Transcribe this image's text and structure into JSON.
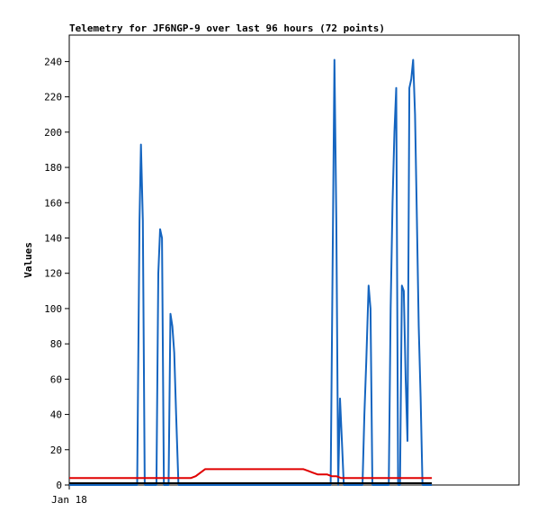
{
  "chart_data": {
    "type": "line",
    "title": "Telemetry for JF6NGP-9 over last 96 hours (72 points)",
    "xlabel": "",
    "ylabel": "Values",
    "x_tick_labels": [
      "Jan 18"
    ],
    "ylim": [
      0,
      255
    ],
    "y_ticks": [
      0,
      20,
      40,
      60,
      80,
      100,
      120,
      140,
      160,
      180,
      200,
      220,
      240
    ],
    "grid": false,
    "legend": "none",
    "series": [
      {
        "color": "#1565c0",
        "x": [
          0,
          14.5,
          15,
          15.3,
          15.7,
          16.1,
          18.6,
          19.0,
          19.4,
          19.8,
          20.2,
          21.2,
          21.6,
          22.0,
          22.4,
          22.8,
          23.3,
          23.7,
          24.1,
          24.5,
          25.3,
          55.8,
          56.2,
          56.6,
          57.0,
          57.4,
          57.8,
          58.2,
          58.6,
          59.0,
          62.6,
          63.0,
          63.4,
          63.9,
          64.3,
          64.7,
          65.1,
          68.2,
          68.6,
          69.0,
          69.4,
          69.8,
          70.2,
          70.6,
          71.0,
          71.4,
          71.8,
          72.2,
          72.6,
          73.0,
          73.4,
          73.8,
          74.2,
          74.6,
          75.0,
          75.4,
          75.8,
          76.2,
          76.6,
          77.0,
          77.4
        ],
        "values": [
          0,
          0,
          150,
          193,
          150,
          0,
          0,
          120,
          145,
          140,
          0,
          0,
          97,
          90,
          75,
          40,
          0,
          0,
          0,
          0,
          0,
          0,
          120,
          241,
          150,
          0,
          49,
          25,
          0,
          0,
          0,
          40,
          70,
          113,
          100,
          0,
          0,
          0,
          100,
          160,
          200,
          225,
          0,
          0,
          113,
          110,
          60,
          25,
          225,
          230,
          241,
          210,
          150,
          90,
          50,
          0,
          0,
          0,
          0,
          0,
          0
        ]
      },
      {
        "color": "#e00000",
        "x": [
          0,
          11,
          16,
          21,
          26,
          27,
          28,
          29,
          30,
          40,
          50,
          51,
          52,
          53,
          54,
          55,
          56,
          57,
          58,
          59,
          60,
          65,
          70,
          75,
          77.4
        ],
        "values": [
          4,
          4,
          4,
          4,
          4,
          5,
          7,
          9,
          9,
          9,
          9,
          8,
          7,
          6,
          6,
          6,
          5,
          5,
          4,
          4,
          4,
          4,
          4,
          4,
          4
        ]
      },
      {
        "color": "#000000",
        "x": [
          0,
          10,
          20,
          30,
          40,
          50,
          60,
          70,
          77.4
        ],
        "values": [
          1,
          1,
          1,
          1,
          1,
          1,
          1,
          1,
          1
        ]
      }
    ]
  }
}
